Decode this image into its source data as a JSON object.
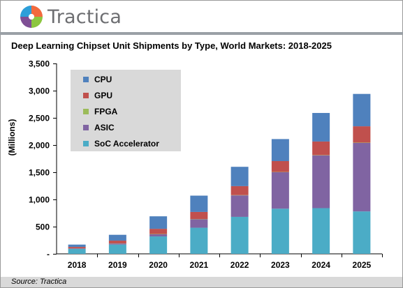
{
  "brand": {
    "name": "Tractica",
    "logo_icon": "tractica-logo-icon"
  },
  "source": "Source: Tractica",
  "colors": {
    "cpu": "#4f81bd",
    "gpu": "#c0504d",
    "fpga": "#9bbb59",
    "asic": "#8064a2",
    "soc": "#4bacc6",
    "rule": "#9aa0a6",
    "legend_bg": "#d9d9d9",
    "footer_bg": "#d9d9d9"
  },
  "chart_data": {
    "type": "bar",
    "stacked": true,
    "title": "Deep Learning Chipset Unit Shipments by Type, World Markets: 2018-2025",
    "xlabel": "",
    "ylabel": "(Millions)",
    "ylim": [
      0,
      3500
    ],
    "y_ticks": [
      0,
      500,
      1000,
      1500,
      2000,
      2500,
      3000,
      3500
    ],
    "y_tick_labels": [
      "-",
      "500",
      "1,000",
      "1,500",
      "2,000",
      "2,500",
      "3,000",
      "3,500"
    ],
    "grid": false,
    "legend_position": "top-left",
    "categories": [
      "2018",
      "2019",
      "2020",
      "2021",
      "2022",
      "2023",
      "2024",
      "2025"
    ],
    "series": [
      {
        "name": "SoC Accelerator",
        "color": "#4bacc6",
        "values": [
          90,
          170,
          320,
          480,
          680,
          830,
          840,
          780
        ]
      },
      {
        "name": "ASIC",
        "color": "#8064a2",
        "values": [
          10,
          20,
          40,
          155,
          395,
          670,
          970,
          1260
        ]
      },
      {
        "name": "FPGA",
        "color": "#9bbb59",
        "values": [
          2,
          3,
          5,
          5,
          5,
          5,
          5,
          5
        ]
      },
      {
        "name": "GPU",
        "color": "#c0504d",
        "values": [
          25,
          50,
          95,
          130,
          165,
          200,
          250,
          300
        ]
      },
      {
        "name": "CPU",
        "color": "#4f81bd",
        "values": [
          43,
          107,
          230,
          300,
          355,
          405,
          525,
          595
        ]
      }
    ],
    "legend_order": [
      "CPU",
      "GPU",
      "FPGA",
      "ASIC",
      "SoC Accelerator"
    ]
  }
}
